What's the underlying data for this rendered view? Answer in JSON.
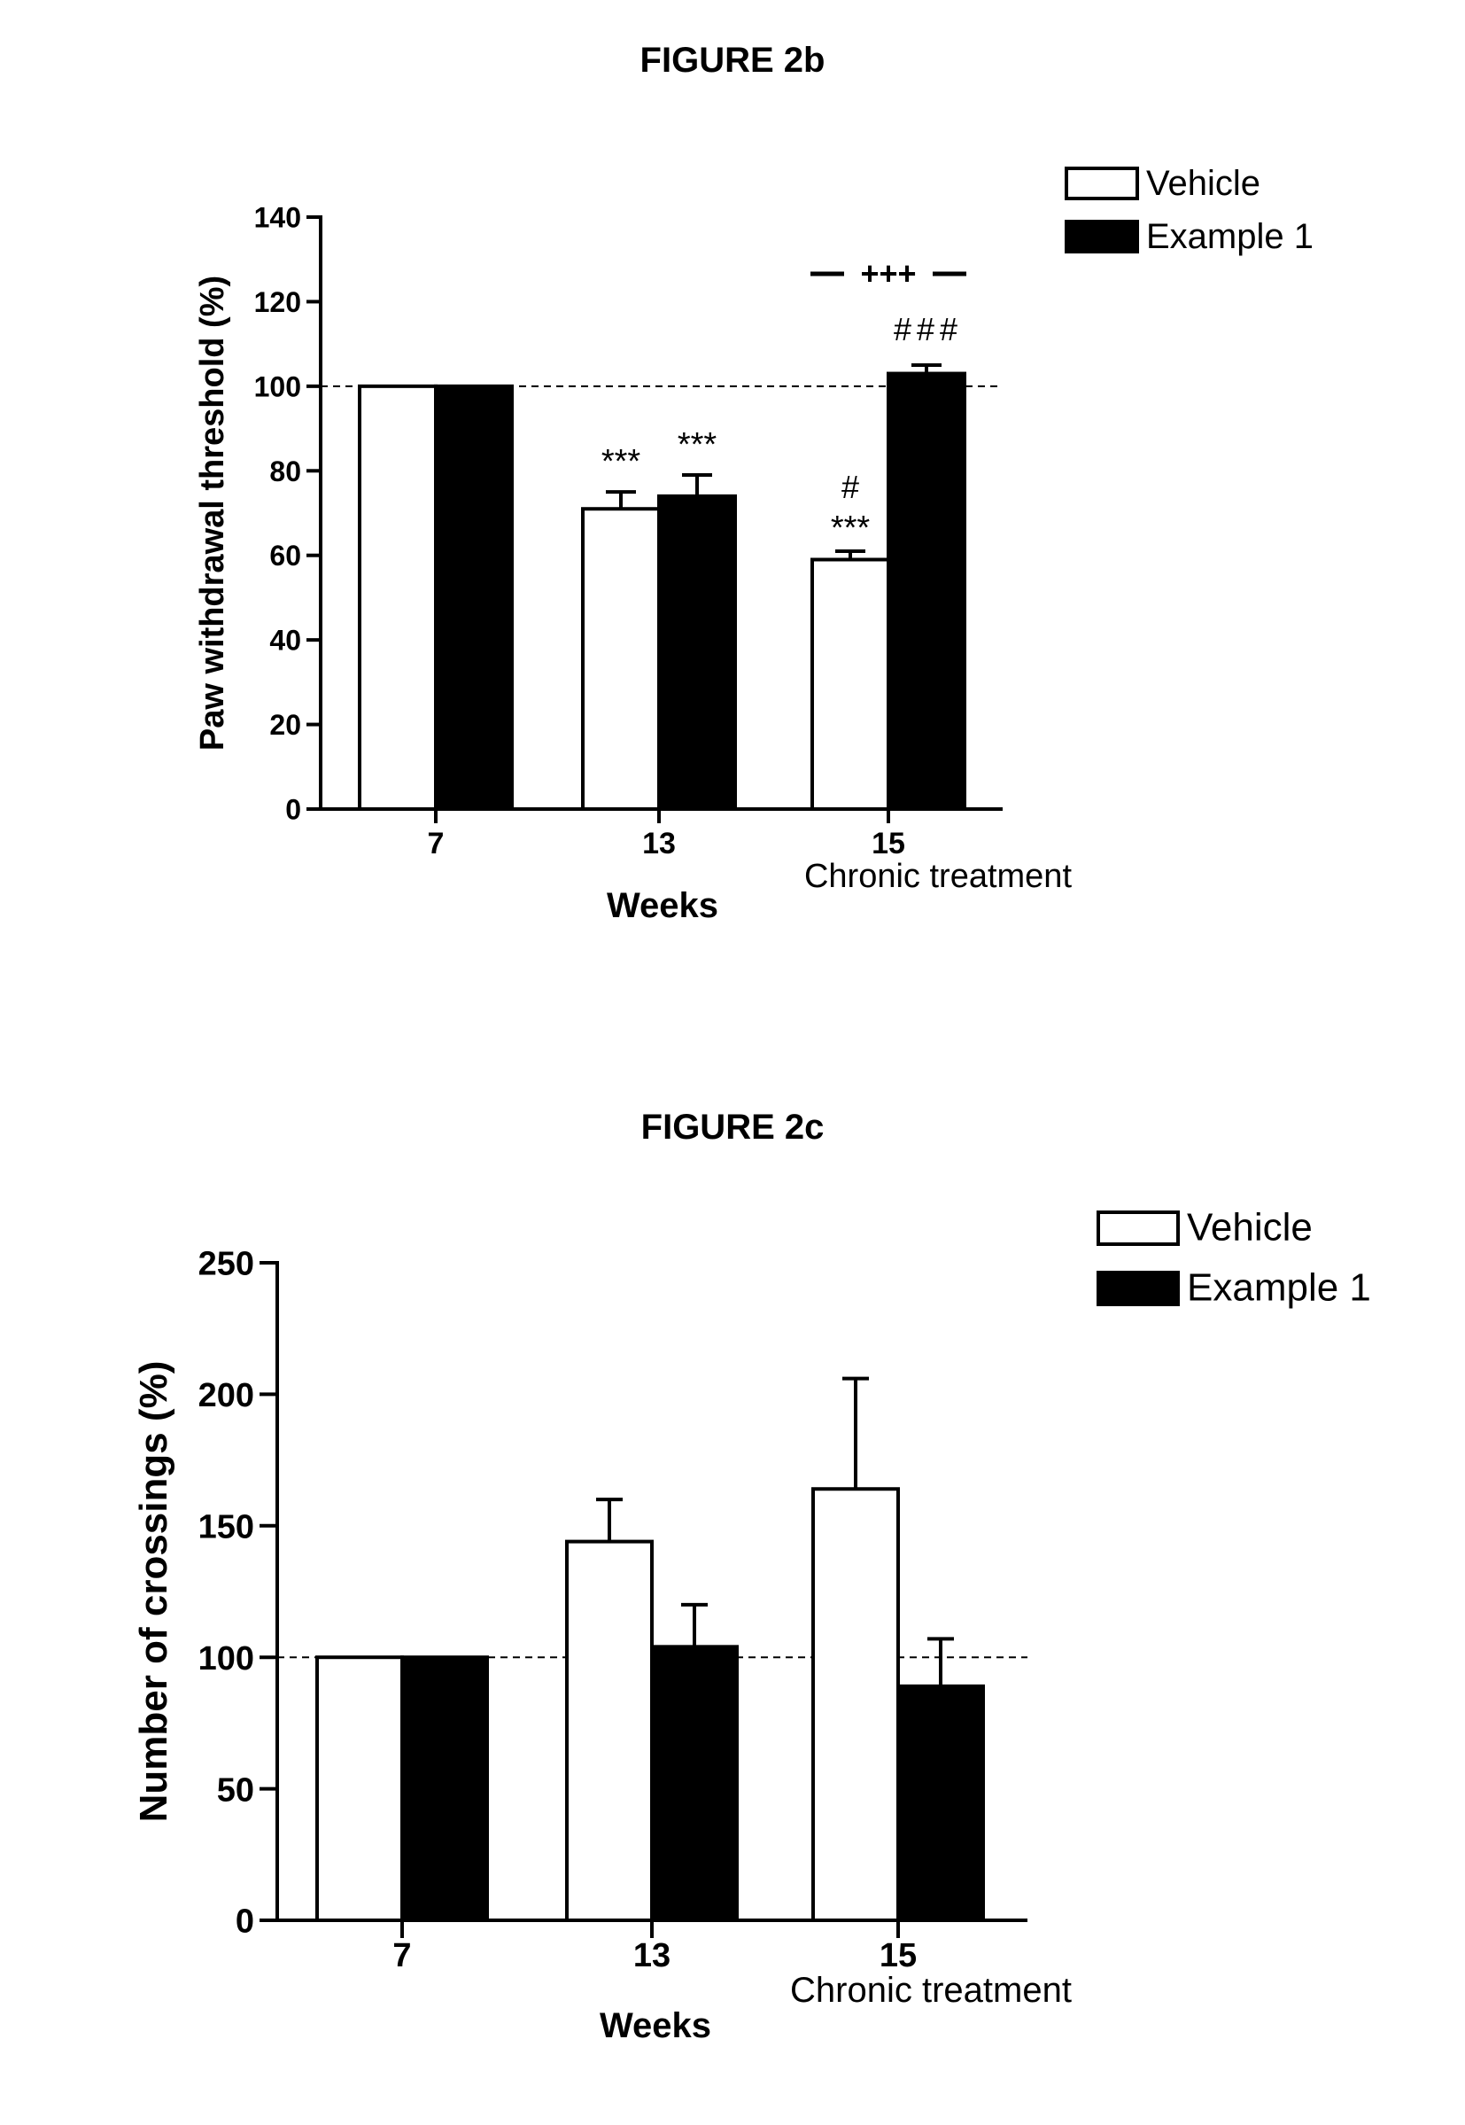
{
  "chart_data": [
    {
      "type": "bar",
      "title": "FIGURE 2b",
      "ylabel": "Paw withdrawal threshold (%)",
      "xlabel": "Weeks",
      "categories": [
        "7",
        "13",
        "15"
      ],
      "category_sublabels": [
        "",
        "",
        "Chronic treatment"
      ],
      "ylim": [
        0,
        140
      ],
      "yticks": [
        0,
        20,
        40,
        60,
        80,
        100,
        120,
        140
      ],
      "reference_line": 100,
      "legend_position": "top-right",
      "series": [
        {
          "name": "Vehicle",
          "fill": "#ffffff",
          "values": [
            100,
            71,
            59
          ],
          "errors": [
            0,
            4,
            2
          ]
        },
        {
          "name": "Example 1",
          "fill": "#000000",
          "values": [
            100,
            74,
            103
          ],
          "errors": [
            0,
            5,
            2
          ]
        }
      ],
      "annotations": {
        "vehicle": [
          "",
          "***",
          "#\n***"
        ],
        "example": [
          "",
          "***",
          "###"
        ],
        "bracket_label": "+++"
      }
    },
    {
      "type": "bar",
      "title": "FIGURE 2c",
      "ylabel": "Number of crossings (%)",
      "xlabel": "Weeks",
      "categories": [
        "7",
        "13",
        "15"
      ],
      "category_sublabels": [
        "",
        "",
        "Chronic treatment"
      ],
      "ylim": [
        0,
        250
      ],
      "yticks": [
        0,
        50,
        100,
        150,
        200,
        250
      ],
      "reference_line": 100,
      "legend_position": "top-right",
      "series": [
        {
          "name": "Vehicle",
          "fill": "#ffffff",
          "values": [
            100,
            144,
            164
          ],
          "errors": [
            0,
            16,
            42
          ]
        },
        {
          "name": "Example 1",
          "fill": "#000000",
          "values": [
            100,
            104,
            89
          ],
          "errors": [
            0,
            16,
            18
          ]
        }
      ]
    }
  ]
}
